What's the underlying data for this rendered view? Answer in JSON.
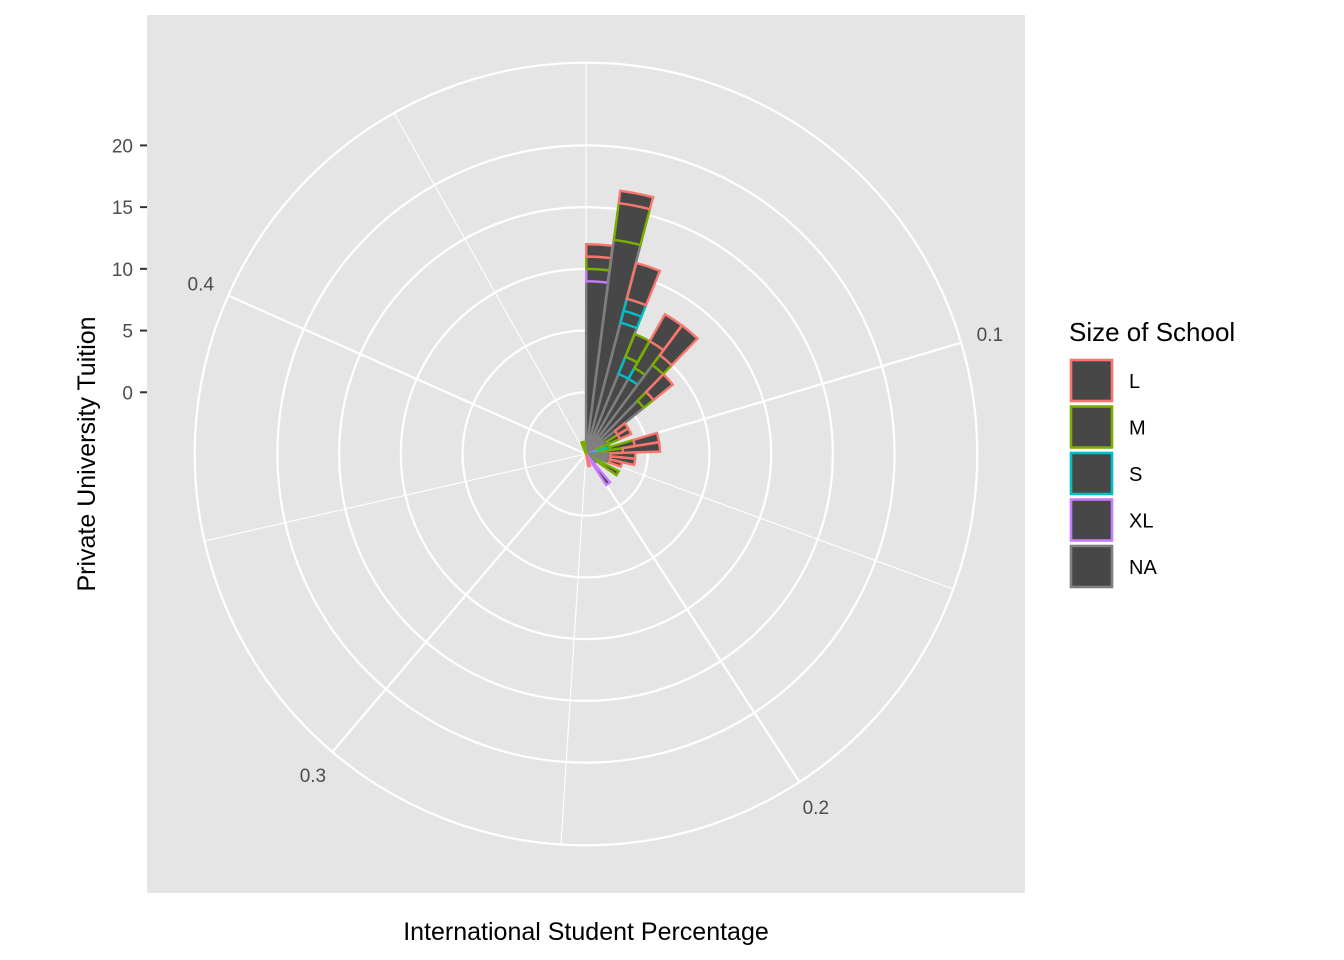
{
  "chart_data": {
    "type": "polar-stacked-bar",
    "xlabel": "International Student Percentage",
    "ylabel": "Private University Tuition",
    "theta_breaks": [
      0.1,
      0.2,
      0.3,
      0.4
    ],
    "theta_labels": [
      "0.1",
      "0.2",
      "0.3",
      "0.4"
    ],
    "theta_range": [
      0,
      0.49
    ],
    "r_breaks": [
      0,
      5,
      10,
      15,
      20
    ],
    "r_labels": [
      "0",
      "5",
      "10",
      "15",
      "20"
    ],
    "r_range": [
      -5,
      27
    ],
    "legend": {
      "title": "Size of School",
      "entries": [
        "L",
        "M",
        "S",
        "XL",
        "NA"
      ],
      "position": "right"
    },
    "colors": {
      "L": "#F8766D",
      "M": "#7CAE00",
      "S": "#00BFC4",
      "XL": "#C77CFF",
      "NA": "#7F7F7F",
      "fill": "#474747"
    },
    "bin_width": 0.01,
    "bars": [
      {
        "x": 0.005,
        "segments": [
          {
            "size": "NA",
            "value": 14
          },
          {
            "size": "XL",
            "value": 1
          },
          {
            "size": "M",
            "value": 1
          },
          {
            "size": "L",
            "value": 1
          }
        ]
      },
      {
        "x": 0.015,
        "segments": [
          {
            "size": "NA",
            "value": 17.5
          },
          {
            "size": "M",
            "value": 3
          },
          {
            "size": "L",
            "value": 1
          }
        ]
      },
      {
        "x": 0.025,
        "segments": [
          {
            "size": "NA",
            "value": 11
          },
          {
            "size": "S",
            "value": 1
          },
          {
            "size": "S",
            "value": 1
          },
          {
            "size": "L",
            "value": 3
          }
        ]
      },
      {
        "x": 0.035,
        "segments": [
          {
            "size": "NA",
            "value": 7
          },
          {
            "size": "S",
            "value": 1.5
          },
          {
            "size": "M",
            "value": 2
          }
        ]
      },
      {
        "x": 0.045,
        "segments": [
          {
            "size": "NA",
            "value": 7
          },
          {
            "size": "S",
            "value": 1
          },
          {
            "size": "M",
            "value": 2.5
          },
          {
            "size": "L",
            "value": 2.5
          }
        ]
      },
      {
        "x": 0.055,
        "segments": [
          {
            "size": "NA",
            "value": 9
          },
          {
            "size": "M",
            "value": 1
          },
          {
            "size": "L",
            "value": 3
          }
        ]
      },
      {
        "x": 0.065,
        "segments": [
          {
            "size": "NA",
            "value": 6
          },
          {
            "size": "M",
            "value": 1
          },
          {
            "size": "L",
            "value": 2
          }
        ]
      },
      {
        "x": 0.075,
        "segments": [
          {
            "size": "NA",
            "value": 3
          },
          {
            "size": "L",
            "value": 1
          }
        ]
      },
      {
        "x": 0.085,
        "segments": [
          {
            "size": "NA",
            "value": 2
          },
          {
            "size": "M",
            "value": 1
          },
          {
            "size": "L",
            "value": 1
          }
        ]
      },
      {
        "x": 0.095,
        "segments": [
          {
            "size": "NA",
            "value": 1
          },
          {
            "size": "M",
            "value": 1
          }
        ]
      },
      {
        "x": 0.105,
        "segments": [
          {
            "size": "XL",
            "value": 1
          },
          {
            "size": "S",
            "value": 1
          },
          {
            "size": "M",
            "value": 2
          },
          {
            "size": "L",
            "value": 2
          }
        ]
      },
      {
        "x": 0.115,
        "segments": [
          {
            "size": "S",
            "value": 1
          },
          {
            "size": "M",
            "value": 2
          },
          {
            "size": "L",
            "value": 3
          }
        ]
      },
      {
        "x": 0.125,
        "segments": [
          {
            "size": "NA",
            "value": 2
          },
          {
            "size": "L",
            "value": 2
          }
        ]
      },
      {
        "x": 0.135,
        "segments": [
          {
            "size": "NA",
            "value": 2
          },
          {
            "size": "L",
            "value": 2
          }
        ]
      },
      {
        "x": 0.145,
        "segments": [
          {
            "size": "NA",
            "value": 2
          },
          {
            "size": "L",
            "value": 1
          }
        ]
      },
      {
        "x": 0.155,
        "segments": [
          {
            "size": "NA",
            "value": 1
          }
        ]
      },
      {
        "x": 0.165,
        "segments": [
          {
            "size": "M",
            "value": 3
          }
        ]
      },
      {
        "x": 0.175,
        "segments": [
          {
            "size": "NA",
            "value": 1
          }
        ]
      },
      {
        "x": 0.195,
        "segments": [
          {
            "size": "XL",
            "value": 3
          }
        ]
      },
      {
        "x": 0.225,
        "segments": [
          {
            "size": "L",
            "value": 1
          }
        ]
      },
      {
        "x": 0.465,
        "segments": [
          {
            "size": "M",
            "value": 1
          }
        ]
      },
      {
        "x": 0.475,
        "segments": [
          {
            "size": "M",
            "value": 1
          }
        ]
      }
    ]
  }
}
